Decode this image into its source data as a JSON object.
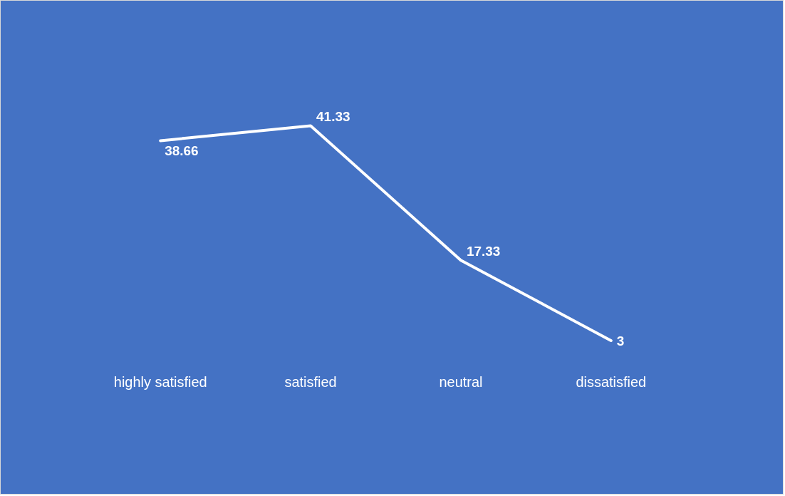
{
  "chart_data": {
    "type": "line",
    "categories": [
      "highly satisfied",
      "satisfied",
      "neutral",
      "dissatisfied"
    ],
    "series": [
      {
        "color": "#ffffff",
        "values": [
          38.66,
          41.33,
          17.33,
          3
        ]
      }
    ],
    "data_labels": true,
    "grid": false,
    "legend": false,
    "marker": "none",
    "line_style": "solid"
  }
}
